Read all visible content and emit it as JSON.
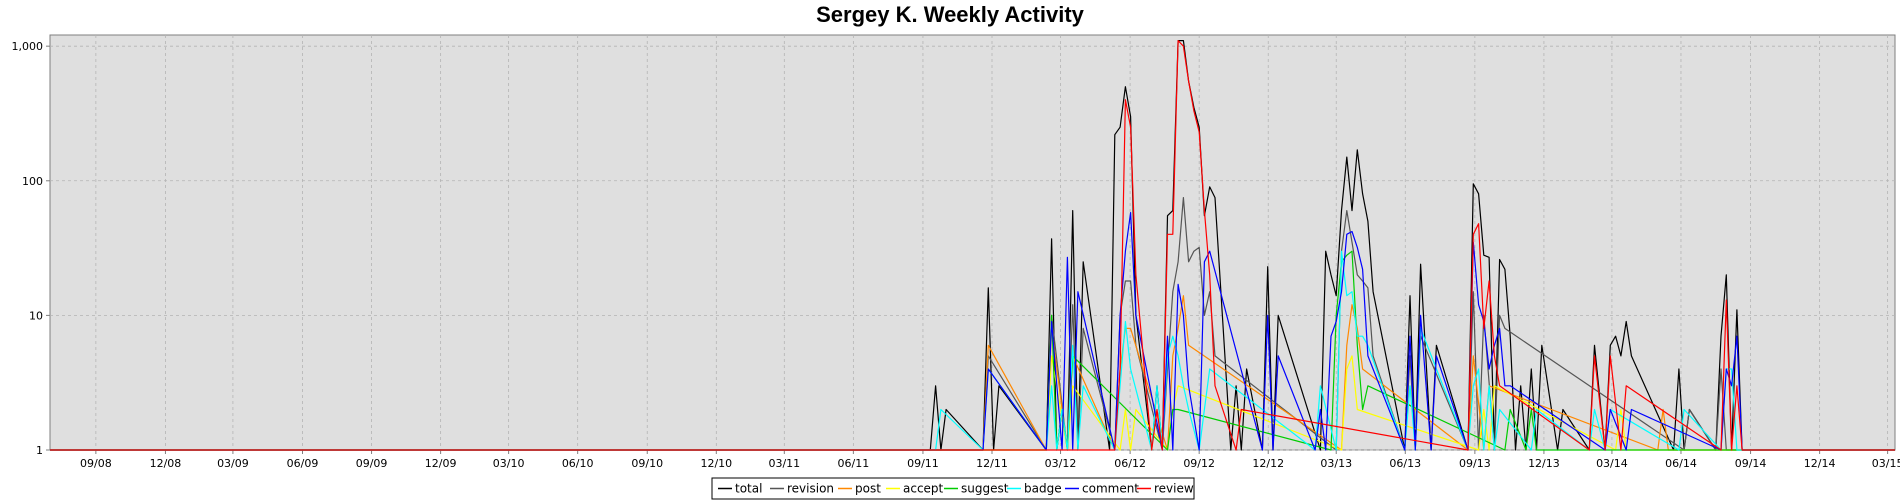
{
  "chart_data": {
    "type": "line",
    "title": "Sergey K. Weekly Activity",
    "xlabel": "",
    "ylabel": "",
    "y_scale": "log",
    "ylim": [
      1,
      1150
    ],
    "y_ticks": [
      {
        "value": 1,
        "label": "1"
      },
      {
        "value": 10,
        "label": "10"
      },
      {
        "value": 100,
        "label": "100"
      },
      {
        "value": 1000,
        "label": "1,000"
      }
    ],
    "x_unit": "weeks since 2008-07-01",
    "xlim": [
      0,
      350
    ],
    "x_ticks": [
      {
        "label": "09/08",
        "week": 8.7
      },
      {
        "label": "12/08",
        "week": 21.9
      },
      {
        "label": "03/09",
        "week": 34.7
      },
      {
        "label": "06/09",
        "week": 47.9
      },
      {
        "label": "09/09",
        "week": 61.0
      },
      {
        "label": "12/09",
        "week": 74.1
      },
      {
        "label": "03/10",
        "week": 87.0
      },
      {
        "label": "06/10",
        "week": 100.1
      },
      {
        "label": "09/10",
        "week": 113.3
      },
      {
        "label": "12/10",
        "week": 126.4
      },
      {
        "label": "03/11",
        "week": 139.3
      },
      {
        "label": "06/11",
        "week": 152.4
      },
      {
        "label": "09/11",
        "week": 165.6
      },
      {
        "label": "12/11",
        "week": 178.7
      },
      {
        "label": "03/12",
        "week": 191.7
      },
      {
        "label": "06/12",
        "week": 204.9
      },
      {
        "label": "09/12",
        "week": 218.0
      },
      {
        "label": "12/12",
        "week": 231.1
      },
      {
        "label": "03/13",
        "week": 244.0
      },
      {
        "label": "06/13",
        "week": 257.1
      },
      {
        "label": "09/13",
        "week": 270.3
      },
      {
        "label": "12/13",
        "week": 283.4
      },
      {
        "label": "03/14",
        "week": 296.3
      },
      {
        "label": "06/14",
        "week": 309.4
      },
      {
        "label": "09/14",
        "week": 322.6
      },
      {
        "label": "12/14",
        "week": 335.7
      },
      {
        "label": "03/15",
        "week": 348.6
      }
    ],
    "grid": true,
    "legend_position": "bottom-center",
    "series": [
      {
        "name": "total",
        "color": "#000000",
        "points": [
          [
            168,
            3
          ],
          [
            170,
            2
          ],
          [
            178,
            16
          ],
          [
            180,
            3
          ],
          [
            190,
            37
          ],
          [
            192,
            2
          ],
          [
            194,
            60
          ],
          [
            196,
            25
          ],
          [
            202,
            220
          ],
          [
            203,
            250
          ],
          [
            204,
            500
          ],
          [
            205,
            300
          ],
          [
            206,
            10
          ],
          [
            210,
            3
          ],
          [
            212,
            55
          ],
          [
            213,
            60
          ],
          [
            214,
            1100
          ],
          [
            215,
            1100
          ],
          [
            216,
            550
          ],
          [
            217,
            350
          ],
          [
            218,
            250
          ],
          [
            219,
            55
          ],
          [
            220,
            90
          ],
          [
            221,
            75
          ],
          [
            225,
            3
          ],
          [
            227,
            4
          ],
          [
            231,
            23
          ],
          [
            233,
            10
          ],
          [
            242,
            30
          ],
          [
            243,
            20
          ],
          [
            244,
            14
          ],
          [
            245,
            60
          ],
          [
            246,
            150
          ],
          [
            247,
            60
          ],
          [
            248,
            170
          ],
          [
            249,
            80
          ],
          [
            250,
            50
          ],
          [
            251,
            15
          ],
          [
            258,
            14
          ],
          [
            260,
            24
          ],
          [
            263,
            6
          ],
          [
            270,
            95
          ],
          [
            271,
            80
          ],
          [
            272,
            28
          ],
          [
            273,
            27
          ],
          [
            275,
            26
          ],
          [
            276,
            22
          ],
          [
            277,
            7
          ],
          [
            279,
            3
          ],
          [
            281,
            4
          ],
          [
            283,
            6
          ],
          [
            287,
            2
          ],
          [
            293,
            6
          ],
          [
            296,
            6
          ],
          [
            297,
            7
          ],
          [
            298,
            5
          ],
          [
            299,
            9
          ],
          [
            300,
            5
          ],
          [
            309,
            4
          ],
          [
            311,
            2
          ],
          [
            317,
            7
          ],
          [
            318,
            20
          ],
          [
            320,
            11
          ]
        ]
      },
      {
        "name": "revision",
        "color": "#555555",
        "points": [
          [
            178,
            5
          ],
          [
            190,
            10
          ],
          [
            194,
            12
          ],
          [
            196,
            8
          ],
          [
            203,
            10
          ],
          [
            204,
            18
          ],
          [
            205,
            18
          ],
          [
            206,
            6
          ],
          [
            212,
            4
          ],
          [
            213,
            15
          ],
          [
            214,
            25
          ],
          [
            215,
            75
          ],
          [
            216,
            25
          ],
          [
            217,
            30
          ],
          [
            218,
            32
          ],
          [
            219,
            10
          ],
          [
            220,
            15
          ],
          [
            221,
            5
          ],
          [
            245,
            30
          ],
          [
            246,
            60
          ],
          [
            247,
            35
          ],
          [
            248,
            20
          ],
          [
            249,
            18
          ],
          [
            250,
            16
          ],
          [
            251,
            5
          ],
          [
            258,
            5
          ],
          [
            260,
            7
          ],
          [
            270,
            15
          ],
          [
            272,
            10
          ],
          [
            275,
            10
          ],
          [
            276,
            8
          ],
          [
            311,
            2
          ],
          [
            317,
            4
          ]
        ]
      },
      {
        "name": "post",
        "color": "#ff8800",
        "points": [
          [
            178,
            6
          ],
          [
            190,
            8
          ],
          [
            194,
            5
          ],
          [
            203,
            4
          ],
          [
            204,
            8
          ],
          [
            205,
            8
          ],
          [
            213,
            5
          ],
          [
            214,
            8
          ],
          [
            215,
            14
          ],
          [
            216,
            6
          ],
          [
            246,
            6
          ],
          [
            247,
            12
          ],
          [
            248,
            8
          ],
          [
            249,
            4
          ],
          [
            270,
            5
          ],
          [
            273,
            3
          ],
          [
            306,
            2
          ]
        ]
      },
      {
        "name": "accept",
        "color": "#ffff00",
        "points": [
          [
            190,
            5
          ],
          [
            194,
            3
          ],
          [
            204,
            2
          ],
          [
            206,
            2
          ],
          [
            213,
            2
          ],
          [
            214,
            3
          ],
          [
            246,
            4
          ],
          [
            247,
            5
          ],
          [
            248,
            2
          ],
          [
            272,
            2
          ],
          [
            274,
            3
          ],
          [
            298,
            2
          ]
        ]
      },
      {
        "name": "suggest",
        "color": "#00cc00",
        "points": [
          [
            190,
            10
          ],
          [
            192,
            2
          ],
          [
            194,
            5
          ],
          [
            213,
            2
          ],
          [
            214,
            2
          ],
          [
            244,
            10
          ],
          [
            245,
            25
          ],
          [
            246,
            28
          ],
          [
            247,
            30
          ],
          [
            248,
            6
          ],
          [
            249,
            2
          ],
          [
            250,
            3
          ],
          [
            277,
            2
          ],
          [
            281,
            2
          ]
        ]
      },
      {
        "name": "badge",
        "color": "#00ffff",
        "points": [
          [
            169,
            2
          ],
          [
            178,
            4
          ],
          [
            190,
            3
          ],
          [
            192,
            2
          ],
          [
            194,
            6
          ],
          [
            196,
            3
          ],
          [
            203,
            3
          ],
          [
            204,
            9
          ],
          [
            205,
            4
          ],
          [
            210,
            3
          ],
          [
            212,
            5
          ],
          [
            213,
            7
          ],
          [
            214,
            5
          ],
          [
            215,
            3
          ],
          [
            216,
            2
          ],
          [
            219,
            2
          ],
          [
            220,
            4
          ],
          [
            241,
            3
          ],
          [
            245,
            30
          ],
          [
            246,
            14
          ],
          [
            247,
            15
          ],
          [
            248,
            7
          ],
          [
            249,
            7
          ],
          [
            250,
            6
          ],
          [
            258,
            3
          ],
          [
            260,
            8
          ],
          [
            270,
            3
          ],
          [
            271,
            4
          ],
          [
            273,
            3
          ],
          [
            275,
            2
          ],
          [
            282,
            2
          ],
          [
            293,
            2
          ],
          [
            296,
            2
          ],
          [
            310,
            2
          ],
          [
            318,
            4
          ],
          [
            319,
            4
          ]
        ]
      },
      {
        "name": "comment",
        "color": "#0000ff",
        "points": [
          [
            178,
            4
          ],
          [
            190,
            9
          ],
          [
            193,
            27
          ],
          [
            195,
            15
          ],
          [
            203,
            10
          ],
          [
            204,
            30
          ],
          [
            205,
            58
          ],
          [
            206,
            10
          ],
          [
            212,
            7
          ],
          [
            214,
            17
          ],
          [
            215,
            10
          ],
          [
            216,
            3
          ],
          [
            219,
            25
          ],
          [
            220,
            30
          ],
          [
            231,
            10
          ],
          [
            233,
            5
          ],
          [
            241,
            2
          ],
          [
            243,
            7
          ],
          [
            244,
            9
          ],
          [
            245,
            15
          ],
          [
            246,
            40
          ],
          [
            247,
            42
          ],
          [
            248,
            32
          ],
          [
            249,
            22
          ],
          [
            250,
            5
          ],
          [
            258,
            7
          ],
          [
            260,
            10
          ],
          [
            263,
            5
          ],
          [
            270,
            35
          ],
          [
            271,
            12
          ],
          [
            272,
            9
          ],
          [
            273,
            4
          ],
          [
            274,
            6
          ],
          [
            275,
            8
          ],
          [
            276,
            3
          ],
          [
            277,
            3
          ],
          [
            296,
            2
          ],
          [
            300,
            2
          ],
          [
            318,
            4
          ],
          [
            319,
            3
          ],
          [
            320,
            7
          ]
        ]
      },
      {
        "name": "review",
        "color": "#ff0000",
        "points": [
          [
            203,
            4
          ],
          [
            204,
            400
          ],
          [
            205,
            250
          ],
          [
            206,
            20
          ],
          [
            210,
            2
          ],
          [
            212,
            40
          ],
          [
            213,
            40
          ],
          [
            214,
            1100
          ],
          [
            215,
            1000
          ],
          [
            216,
            550
          ],
          [
            217,
            330
          ],
          [
            218,
            230
          ],
          [
            219,
            60
          ],
          [
            220,
            20
          ],
          [
            221,
            3
          ],
          [
            226,
            2
          ],
          [
            270,
            40
          ],
          [
            271,
            48
          ],
          [
            272,
            8
          ],
          [
            273,
            18
          ],
          [
            274,
            5
          ],
          [
            275,
            3
          ],
          [
            293,
            5
          ],
          [
            296,
            5
          ],
          [
            299,
            3
          ],
          [
            318,
            13
          ],
          [
            320,
            3
          ]
        ]
      }
    ]
  }
}
